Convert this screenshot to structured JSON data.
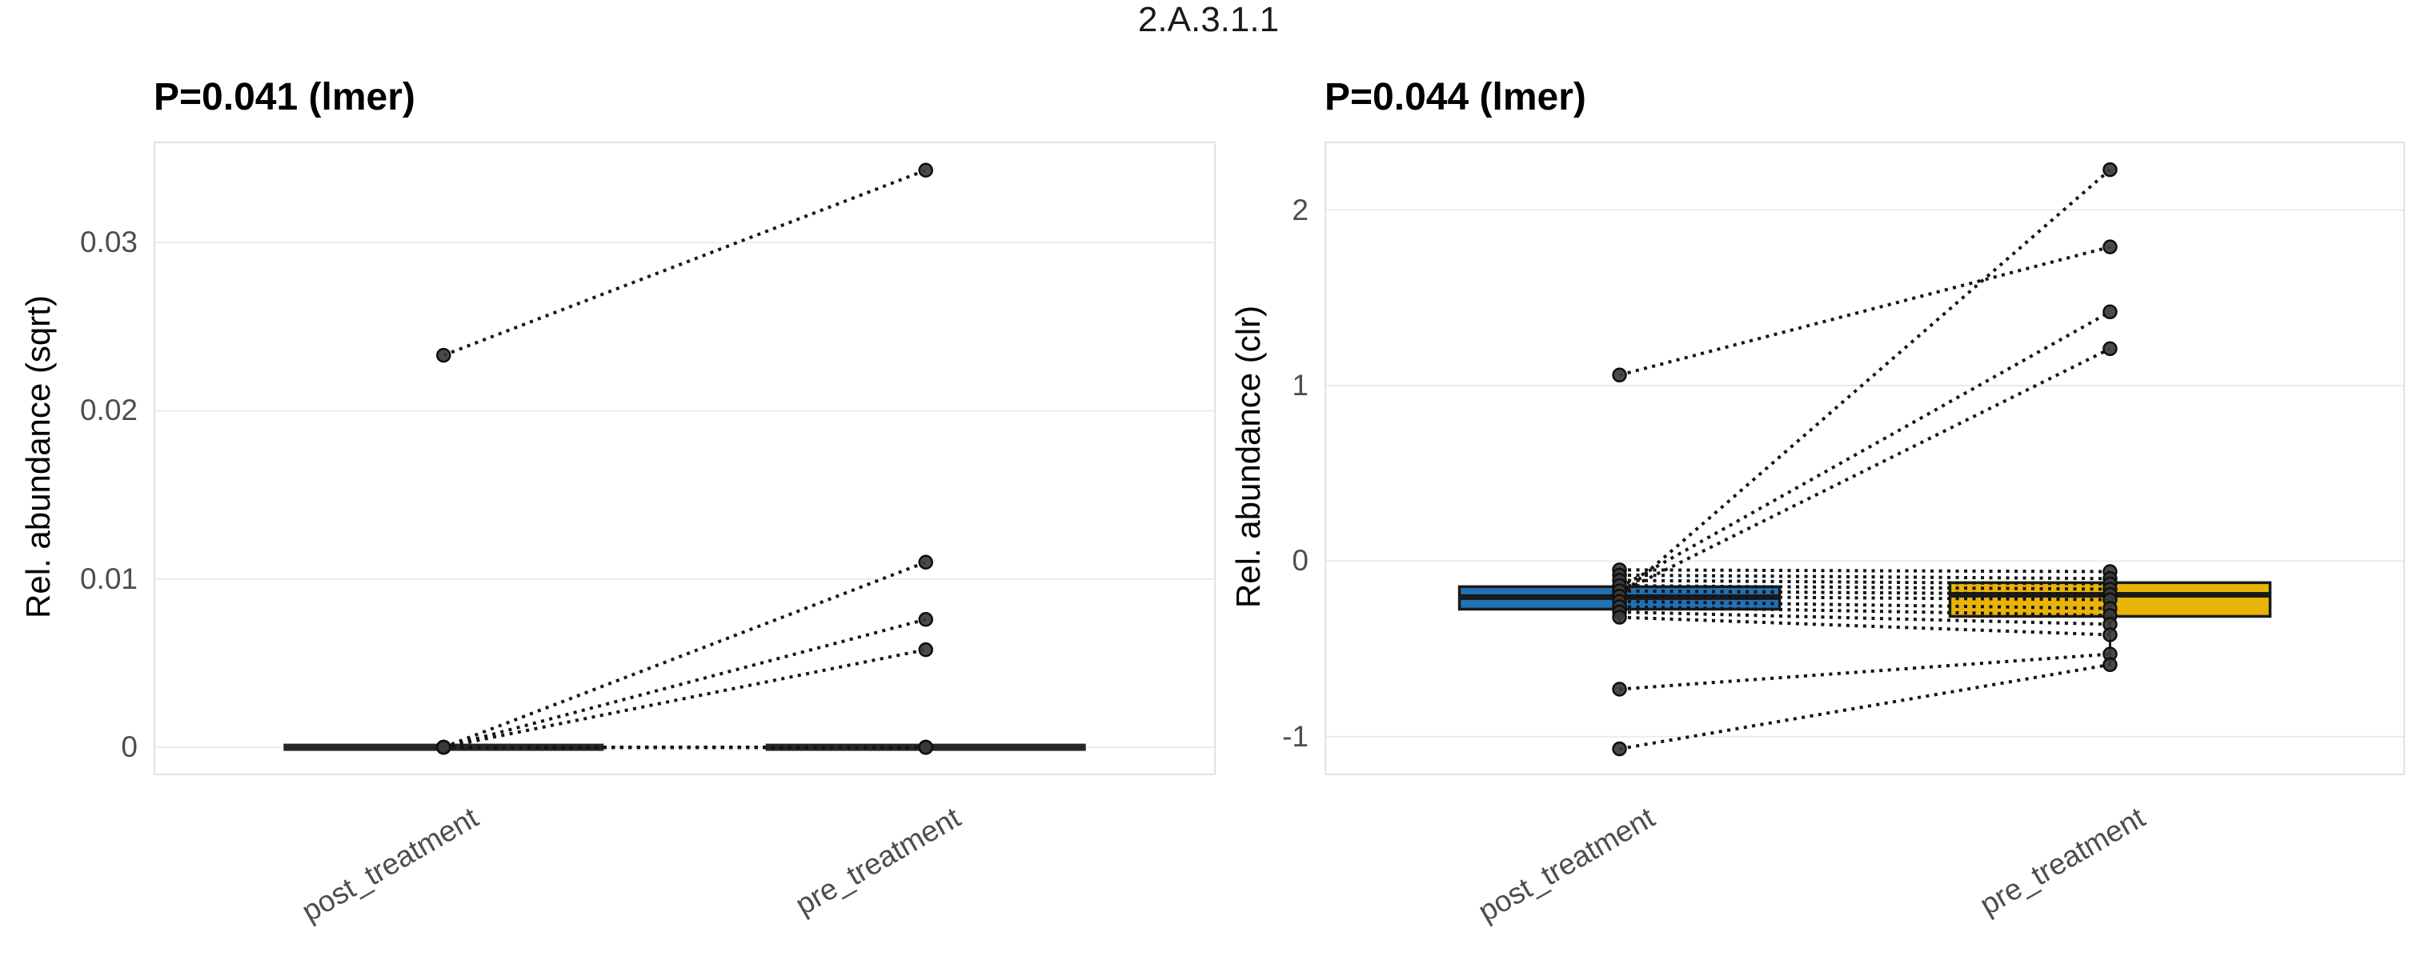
{
  "figure_title": "2.A.3.1.1",
  "style": {
    "background": "#FFFFFF",
    "gridline_color": "#EBEBEB",
    "panel_border_color": "#E2E2E2",
    "tick_label_color": "#4D4D4D",
    "title_color": "#1A1A1A",
    "point_color": "#3B3B3B",
    "point_stroke_color": "#0F0F0F",
    "pair_line_color": "#141414",
    "box_stroke_color": "#1A1A1A",
    "post_box_fill_right": "#2171B5",
    "pre_box_fill_right": "#E9B408",
    "collapsed_box_fill_left": "#262626"
  },
  "chart_data": [
    {
      "type": "paired-boxplot-with-lines",
      "title": "P=0.041 (lmer)",
      "ylabel": "Rel. abundance (sqrt)",
      "categories": [
        "post_treatment",
        "pre_treatment"
      ],
      "yticks": [
        {
          "value": 0,
          "label": "0"
        },
        {
          "value": 0.01,
          "label": "0.01"
        },
        {
          "value": 0.02,
          "label": "0.02"
        },
        {
          "value": 0.03,
          "label": "0.03"
        }
      ],
      "ylim": [
        -0.00166,
        0.036
      ],
      "grid": true,
      "legend": "none",
      "boxes": [
        {
          "category": "post_treatment",
          "fill": "#262626",
          "q1": 0,
          "median": 0,
          "q3": 0,
          "whisker_low": 0,
          "whisker_high": 0
        },
        {
          "category": "pre_treatment",
          "fill": "#262626",
          "q1": 0,
          "median": 0,
          "q3": 0,
          "whisker_low": 0,
          "whisker_high": 0
        }
      ],
      "pairs_note": "each pair is [post_treatment_value, pre_treatment_value]",
      "pairs": [
        [
          0.0233,
          0.0343
        ],
        [
          0,
          0.011
        ],
        [
          0,
          0.0076
        ],
        [
          0,
          0.0058
        ],
        [
          0,
          0
        ],
        [
          0,
          0
        ],
        [
          0,
          0
        ],
        [
          0,
          0
        ],
        [
          0,
          0
        ],
        [
          0,
          0
        ],
        [
          0,
          0
        ],
        [
          0,
          0
        ],
        [
          0,
          0
        ],
        [
          0,
          0
        ],
        [
          0,
          0
        ],
        [
          0,
          0
        ]
      ]
    },
    {
      "type": "paired-boxplot-with-lines",
      "title": "P=0.044 (lmer)",
      "ylabel": "Rel. abundance (clr)",
      "categories": [
        "post_treatment",
        "pre_treatment"
      ],
      "yticks": [
        {
          "value": -1,
          "label": "-1"
        },
        {
          "value": 0,
          "label": "0"
        },
        {
          "value": 1,
          "label": "1"
        },
        {
          "value": 2,
          "label": "2"
        }
      ],
      "ylim": [
        -1.22,
        2.39
      ],
      "grid": true,
      "legend": "none",
      "boxes": [
        {
          "category": "post_treatment",
          "fill": "#2171B5",
          "q1": -0.274,
          "median": -0.205,
          "q3": -0.146,
          "whisker_low": -0.35,
          "whisker_high": -0.05
        },
        {
          "category": "pre_treatment",
          "fill": "#E9B408",
          "q1": -0.315,
          "median": -0.192,
          "q3": -0.123,
          "whisker_low": -0.6,
          "whisker_high": -0.06
        }
      ],
      "pairs_note": "each pair is [post_treatment_value, pre_treatment_value]",
      "pairs": [
        [
          -0.2,
          2.23
        ],
        [
          1.06,
          1.79
        ],
        [
          -0.15,
          1.42
        ],
        [
          -0.18,
          1.21
        ],
        [
          -0.05,
          -0.06
        ],
        [
          -0.08,
          -0.1
        ],
        [
          -0.11,
          -0.13
        ],
        [
          -0.14,
          -0.16
        ],
        [
          -0.17,
          -0.19
        ],
        [
          -0.2,
          -0.22
        ],
        [
          -0.23,
          -0.27
        ],
        [
          -0.26,
          -0.31
        ],
        [
          -0.29,
          -0.36
        ],
        [
          -0.32,
          -0.42
        ],
        [
          -0.73,
          -0.53
        ],
        [
          -1.07,
          -0.59
        ]
      ]
    }
  ]
}
